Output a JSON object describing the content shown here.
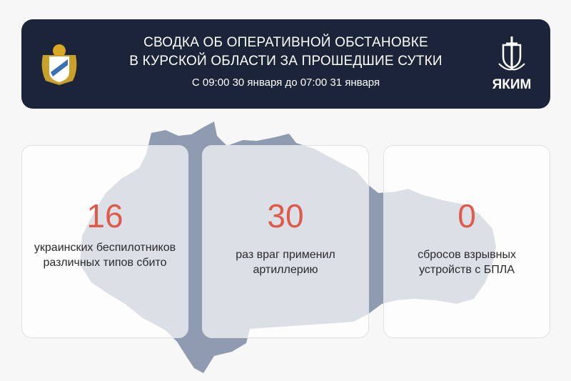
{
  "header": {
    "title_line1": "СВОДКА ОБ ОПЕРАТИВНОЙ ОБСТАНОВКЕ",
    "title_line2": "В КУРСКОЙ ОБЛАСТИ ЗА ПРОШЕДШИЕ СУТКИ",
    "period": "С 09:00 30 января до 07:00 31 января",
    "brand": "ЯКИМ"
  },
  "colors": {
    "header_bg": "#1c243a",
    "accent": "#e05a4b",
    "map": "#8e9bb0"
  },
  "stats": [
    {
      "value": "16",
      "label_line1": "украинских беспилотников",
      "label_line2": "различных типов сбито"
    },
    {
      "value": "30",
      "label_line1": "раз враг применил",
      "label_line2": "артиллерию"
    },
    {
      "value": "0",
      "label_line1": "сбросов взрывных",
      "label_line2": "устройств с БПЛА"
    }
  ]
}
